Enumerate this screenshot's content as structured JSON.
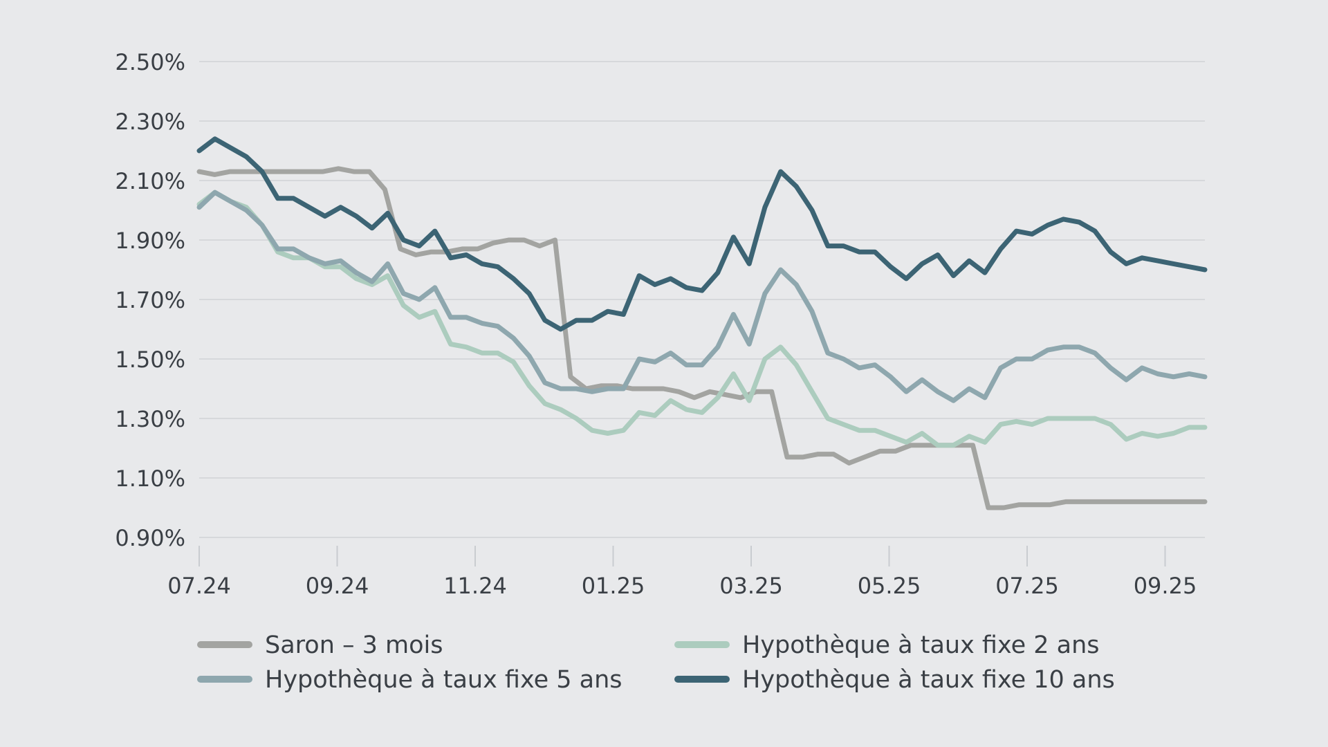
{
  "chart_data": {
    "type": "line",
    "title": "",
    "xlabel": "",
    "ylabel": "",
    "ylim": [
      0.9,
      2.5
    ],
    "y_ticks": [
      "2.50%",
      "2.30%",
      "2.10%",
      "1.90%",
      "1.70%",
      "1.50%",
      "1.30%",
      "1.10%",
      "0.90%"
    ],
    "x_ticks": [
      "07.24",
      "09.24",
      "11.24",
      "01.25",
      "03.25",
      "05.25",
      "07.25",
      "09.25"
    ],
    "grid": true,
    "legend_position": "bottom",
    "series": [
      {
        "name": "Saron – 3 mois",
        "color": "#a3a4a1",
        "values": [
          2.13,
          2.12,
          2.13,
          2.13,
          2.13,
          2.13,
          2.13,
          2.13,
          2.13,
          2.14,
          2.13,
          2.13,
          2.07,
          1.87,
          1.85,
          1.86,
          1.86,
          1.87,
          1.87,
          1.89,
          1.9,
          1.9,
          1.88,
          1.9,
          1.44,
          1.4,
          1.41,
          1.41,
          1.4,
          1.4,
          1.4,
          1.39,
          1.37,
          1.39,
          1.38,
          1.37,
          1.39,
          1.39,
          1.17,
          1.17,
          1.18,
          1.18,
          1.15,
          1.17,
          1.19,
          1.19,
          1.21,
          1.21,
          1.21,
          1.21,
          1.21,
          1.0,
          1.0,
          1.01,
          1.01,
          1.01,
          1.02,
          1.02,
          1.02,
          1.02,
          1.02,
          1.02,
          1.02,
          1.02,
          1.02,
          1.02
        ]
      },
      {
        "name": "Hypothèque à taux fixe 2 ans",
        "color": "#acccbe",
        "values": [
          2.02,
          2.06,
          2.03,
          2.01,
          1.95,
          1.86,
          1.84,
          1.84,
          1.81,
          1.81,
          1.77,
          1.75,
          1.78,
          1.68,
          1.64,
          1.66,
          1.55,
          1.54,
          1.52,
          1.52,
          1.49,
          1.41,
          1.35,
          1.33,
          1.3,
          1.26,
          1.25,
          1.26,
          1.32,
          1.31,
          1.36,
          1.33,
          1.32,
          1.37,
          1.45,
          1.36,
          1.5,
          1.54,
          1.48,
          1.39,
          1.3,
          1.28,
          1.26,
          1.26,
          1.24,
          1.22,
          1.25,
          1.21,
          1.21,
          1.24,
          1.22,
          1.28,
          1.29,
          1.28,
          1.3,
          1.3,
          1.3,
          1.3,
          1.28,
          1.23,
          1.25,
          1.24,
          1.25,
          1.27,
          1.27
        ]
      },
      {
        "name": "Hypothèque à taux fixe 5 ans",
        "color": "#8ea7ae",
        "values": [
          2.01,
          2.06,
          2.03,
          2.0,
          1.95,
          1.87,
          1.87,
          1.84,
          1.82,
          1.83,
          1.79,
          1.76,
          1.82,
          1.72,
          1.7,
          1.74,
          1.64,
          1.64,
          1.62,
          1.61,
          1.57,
          1.51,
          1.42,
          1.4,
          1.4,
          1.39,
          1.4,
          1.4,
          1.5,
          1.49,
          1.52,
          1.48,
          1.48,
          1.54,
          1.65,
          1.55,
          1.72,
          1.8,
          1.75,
          1.66,
          1.52,
          1.5,
          1.47,
          1.48,
          1.44,
          1.39,
          1.43,
          1.39,
          1.36,
          1.4,
          1.37,
          1.47,
          1.5,
          1.5,
          1.53,
          1.54,
          1.54,
          1.52,
          1.47,
          1.43,
          1.47,
          1.45,
          1.44,
          1.45,
          1.44
        ]
      },
      {
        "name": "Hypothèque à taux fixe 10 ans",
        "color": "#3c6474",
        "values": [
          2.2,
          2.24,
          2.21,
          2.18,
          2.13,
          2.04,
          2.04,
          2.01,
          1.98,
          2.01,
          1.98,
          1.94,
          1.99,
          1.9,
          1.88,
          1.93,
          1.84,
          1.85,
          1.82,
          1.81,
          1.77,
          1.72,
          1.63,
          1.6,
          1.63,
          1.63,
          1.66,
          1.65,
          1.78,
          1.75,
          1.77,
          1.74,
          1.73,
          1.79,
          1.91,
          1.82,
          2.01,
          2.13,
          2.08,
          2.0,
          1.88,
          1.88,
          1.86,
          1.86,
          1.81,
          1.77,
          1.82,
          1.85,
          1.78,
          1.83,
          1.79,
          1.87,
          1.93,
          1.92,
          1.95,
          1.97,
          1.96,
          1.93,
          1.86,
          1.82,
          1.84,
          1.83,
          1.82,
          1.81,
          1.8
        ]
      }
    ]
  }
}
